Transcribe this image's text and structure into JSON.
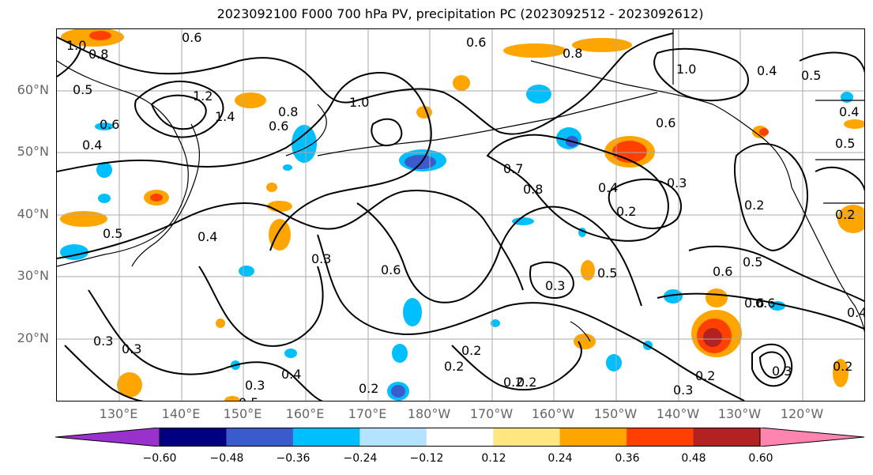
{
  "title": "2023092100 F000 700 hPa PV, precipitation PC (2023092512 - 2023092612)",
  "latitude_labels": [
    "60°N",
    "50°N",
    "40°N",
    "30°N",
    "20°N"
  ],
  "longitude_labels": [
    "130°E",
    "140°E",
    "150°E",
    "160°E",
    "170°E",
    "180°W",
    "170°W",
    "160°W",
    "150°W",
    "140°W",
    "130°W",
    "120°W"
  ],
  "colorbar": {
    "tick_labels": [
      "−0.60",
      "−0.48",
      "−0.36",
      "−0.24",
      "−0.12",
      "0.12",
      "0.24",
      "0.36",
      "0.48",
      "0.60"
    ],
    "colors": [
      "#9932cc",
      "#000080",
      "#3a5bcc",
      "#00bfff",
      "#b3e3ff",
      "#ffffff",
      "#ffe680",
      "#ffa500",
      "#ff4000",
      "#b22222",
      "#ff85b0"
    ]
  },
  "contour_labels": [
    "1.0",
    "0.8",
    "0.6",
    "0.5",
    "0.4",
    "1.2",
    "1.4",
    "0.6",
    "0.6",
    "1.0",
    "0.8",
    "0.6",
    "0.7",
    "0.8",
    "0.6",
    "0.4",
    "0.2",
    "0.3",
    "1.0",
    "0.4",
    "0.5",
    "0.4",
    "0.5",
    "0.3",
    "0.6",
    "0.3",
    "0.5",
    "0.3",
    "0.6",
    "0.5",
    "0.6",
    "0.2",
    "0.2",
    "0.2",
    "0.3",
    "0.4",
    "0.3",
    "0.2",
    "0.3",
    "0.2",
    "0.2",
    "0.5",
    "0.2",
    "0.4",
    "0.6",
    "0.8",
    "0.4",
    "0.3",
    "0.2",
    "0.5",
    "0.2"
  ]
}
